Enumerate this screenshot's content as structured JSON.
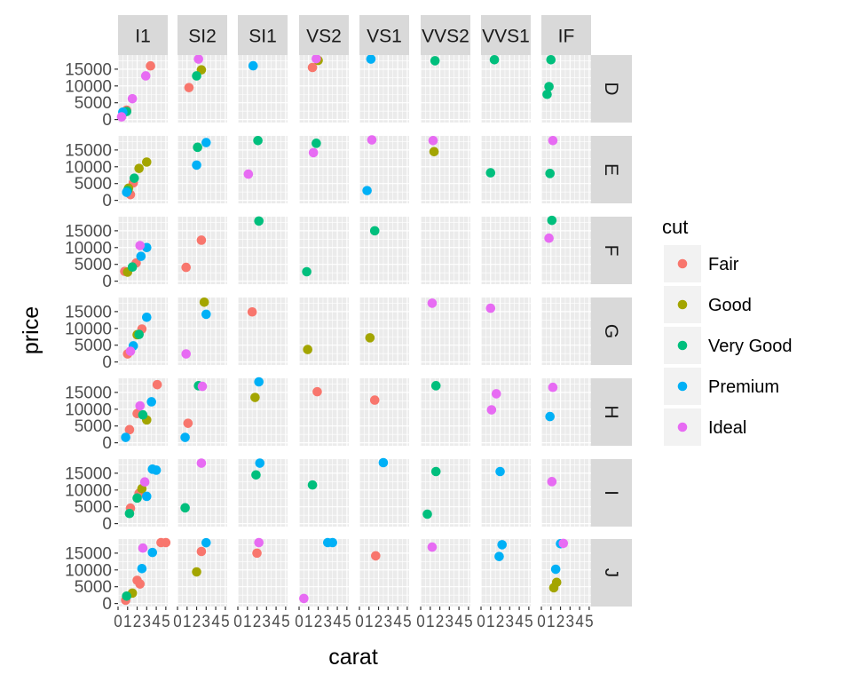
{
  "chart_data": {
    "type": "scatter",
    "title": "",
    "xlabel": "carat",
    "ylabel": "price",
    "xlim": [
      0,
      5.2
    ],
    "ylim": [
      -900,
      19200
    ],
    "x_ticks": [
      "0",
      "1",
      "2",
      "3",
      "4",
      "5"
    ],
    "y_ticks": [
      "0",
      "5000",
      "10000",
      "15000"
    ],
    "column_facets": [
      "I1",
      "SI2",
      "SI1",
      "VS2",
      "VS1",
      "VVS2",
      "VVS1",
      "IF"
    ],
    "row_facets": [
      "D",
      "E",
      "F",
      "G",
      "H",
      "I",
      "J"
    ],
    "legend": {
      "title": "cut",
      "position": "right",
      "entries": [
        "Fair",
        "Good",
        "Very Good",
        "Premium",
        "Ideal"
      ]
    },
    "colors": {
      "Fair": "#F8766D",
      "Good": "#A3A500",
      "Very Good": "#00BF7D",
      "Premium": "#00B0F6",
      "Ideal": "#E76BF3",
      "panel": "#EBEBEB",
      "grid": "#FFFFFF",
      "strip": "#D9D9D9"
    },
    "series": [
      {
        "name": "Fair",
        "points": [
          {
            "col": "I1",
            "row": "D",
            "x": 3.4,
            "y": 15964
          },
          {
            "col": "I1",
            "row": "D",
            "x": 0.9,
            "y": 2800
          },
          {
            "col": "I1",
            "row": "E",
            "x": 1.6,
            "y": 5200
          },
          {
            "col": "I1",
            "row": "E",
            "x": 1.3,
            "y": 1700
          },
          {
            "col": "I1",
            "row": "F",
            "x": 1.9,
            "y": 5400
          },
          {
            "col": "I1",
            "row": "F",
            "x": 0.7,
            "y": 2900
          },
          {
            "col": "I1",
            "row": "G",
            "x": 2.5,
            "y": 9800
          },
          {
            "col": "I1",
            "row": "G",
            "x": 1.0,
            "y": 2400
          },
          {
            "col": "I1",
            "row": "H",
            "x": 4.1,
            "y": 17300
          },
          {
            "col": "I1",
            "row": "H",
            "x": 2.0,
            "y": 8700
          },
          {
            "col": "I1",
            "row": "H",
            "x": 1.2,
            "y": 3900
          },
          {
            "col": "I1",
            "row": "I",
            "x": 2.2,
            "y": 9000
          },
          {
            "col": "I1",
            "row": "I",
            "x": 1.3,
            "y": 4600
          },
          {
            "col": "I1",
            "row": "J",
            "x": 4.5,
            "y": 18531
          },
          {
            "col": "I1",
            "row": "J",
            "x": 5.0,
            "y": 18531
          },
          {
            "col": "I1",
            "row": "J",
            "x": 2.0,
            "y": 6900
          },
          {
            "col": "I1",
            "row": "J",
            "x": 2.3,
            "y": 5800
          },
          {
            "col": "I1",
            "row": "J",
            "x": 0.8,
            "y": 1000
          },
          {
            "col": "SI2",
            "row": "D",
            "x": 1.2,
            "y": 9500
          },
          {
            "col": "SI2",
            "row": "F",
            "x": 2.5,
            "y": 12200
          },
          {
            "col": "SI2",
            "row": "F",
            "x": 0.9,
            "y": 4100
          },
          {
            "col": "SI2",
            "row": "H",
            "x": 1.1,
            "y": 5800
          },
          {
            "col": "SI2",
            "row": "J",
            "x": 2.5,
            "y": 15500
          },
          {
            "col": "SI1",
            "row": "G",
            "x": 1.5,
            "y": 14900
          },
          {
            "col": "SI1",
            "row": "J",
            "x": 2.0,
            "y": 15000
          },
          {
            "col": "VS2",
            "row": "D",
            "x": 1.4,
            "y": 15500
          },
          {
            "col": "VS2",
            "row": "H",
            "x": 1.9,
            "y": 15200
          },
          {
            "col": "VS1",
            "row": "H",
            "x": 1.6,
            "y": 12700
          },
          {
            "col": "VS1",
            "row": "J",
            "x": 1.7,
            "y": 14200
          }
        ]
      },
      {
        "name": "Good",
        "points": [
          {
            "col": "I1",
            "row": "E",
            "x": 3.0,
            "y": 11400
          },
          {
            "col": "I1",
            "row": "E",
            "x": 2.2,
            "y": 9500
          },
          {
            "col": "I1",
            "row": "E",
            "x": 1.1,
            "y": 3600
          },
          {
            "col": "I1",
            "row": "F",
            "x": 1.0,
            "y": 2700
          },
          {
            "col": "I1",
            "row": "G",
            "x": 2.0,
            "y": 8100
          },
          {
            "col": "I1",
            "row": "H",
            "x": 3.0,
            "y": 6800
          },
          {
            "col": "I1",
            "row": "I",
            "x": 2.5,
            "y": 10400
          },
          {
            "col": "I1",
            "row": "J",
            "x": 1.5,
            "y": 3100
          },
          {
            "col": "SI2",
            "row": "D",
            "x": 2.5,
            "y": 14800
          },
          {
            "col": "SI2",
            "row": "G",
            "x": 2.8,
            "y": 17800
          },
          {
            "col": "SI2",
            "row": "J",
            "x": 2.0,
            "y": 9400
          },
          {
            "col": "SI1",
            "row": "H",
            "x": 1.8,
            "y": 13500
          },
          {
            "col": "VS2",
            "row": "D",
            "x": 2.0,
            "y": 17600
          },
          {
            "col": "VS2",
            "row": "G",
            "x": 0.9,
            "y": 3700
          },
          {
            "col": "VS1",
            "row": "G",
            "x": 1.1,
            "y": 7200
          },
          {
            "col": "VVS2",
            "row": "E",
            "x": 1.4,
            "y": 14500
          },
          {
            "col": "IF",
            "row": "J",
            "x": 1.6,
            "y": 6300
          },
          {
            "col": "IF",
            "row": "J",
            "x": 1.3,
            "y": 4700
          }
        ]
      },
      {
        "name": "Very Good",
        "points": [
          {
            "col": "I1",
            "row": "D",
            "x": 0.9,
            "y": 2400
          },
          {
            "col": "I1",
            "row": "E",
            "x": 1.0,
            "y": 2900
          },
          {
            "col": "I1",
            "row": "E",
            "x": 1.7,
            "y": 6600
          },
          {
            "col": "I1",
            "row": "F",
            "x": 1.5,
            "y": 4200
          },
          {
            "col": "I1",
            "row": "G",
            "x": 2.2,
            "y": 8200
          },
          {
            "col": "I1",
            "row": "H",
            "x": 2.6,
            "y": 8300
          },
          {
            "col": "I1",
            "row": "I",
            "x": 1.2,
            "y": 3000
          },
          {
            "col": "I1",
            "row": "I",
            "x": 2.0,
            "y": 7600
          },
          {
            "col": "I1",
            "row": "J",
            "x": 0.9,
            "y": 2200
          },
          {
            "col": "SI2",
            "row": "D",
            "x": 2.0,
            "y": 13000
          },
          {
            "col": "SI2",
            "row": "E",
            "x": 2.1,
            "y": 15800
          },
          {
            "col": "SI2",
            "row": "H",
            "x": 2.2,
            "y": 17000
          },
          {
            "col": "SI2",
            "row": "I",
            "x": 0.8,
            "y": 4700
          },
          {
            "col": "SI1",
            "row": "E",
            "x": 2.1,
            "y": 17800
          },
          {
            "col": "SI1",
            "row": "F",
            "x": 2.2,
            "y": 17900
          },
          {
            "col": "SI1",
            "row": "I",
            "x": 1.9,
            "y": 14500
          },
          {
            "col": "VS2",
            "row": "E",
            "x": 1.8,
            "y": 17000
          },
          {
            "col": "VS2",
            "row": "F",
            "x": 0.8,
            "y": 2800
          },
          {
            "col": "VS2",
            "row": "I",
            "x": 1.4,
            "y": 11500
          },
          {
            "col": "VS1",
            "row": "F",
            "x": 1.6,
            "y": 15000
          },
          {
            "col": "VVS2",
            "row": "D",
            "x": 1.5,
            "y": 17500
          },
          {
            "col": "VVS2",
            "row": "H",
            "x": 1.6,
            "y": 17000
          },
          {
            "col": "VVS2",
            "row": "I",
            "x": 1.6,
            "y": 15500
          },
          {
            "col": "VVS2",
            "row": "I",
            "x": 0.7,
            "y": 2800
          },
          {
            "col": "VVS1",
            "row": "D",
            "x": 1.4,
            "y": 17800
          },
          {
            "col": "VVS1",
            "row": "E",
            "x": 1.0,
            "y": 8200
          },
          {
            "col": "IF",
            "row": "D",
            "x": 1.0,
            "y": 17800
          },
          {
            "col": "IF",
            "row": "D",
            "x": 0.8,
            "y": 9800
          },
          {
            "col": "IF",
            "row": "D",
            "x": 0.6,
            "y": 7500
          },
          {
            "col": "IF",
            "row": "E",
            "x": 0.9,
            "y": 8000
          },
          {
            "col": "IF",
            "row": "F",
            "x": 1.1,
            "y": 18100
          }
        ]
      },
      {
        "name": "Premium",
        "points": [
          {
            "col": "I1",
            "row": "D",
            "x": 0.5,
            "y": 2200
          },
          {
            "col": "I1",
            "row": "E",
            "x": 0.9,
            "y": 2400
          },
          {
            "col": "I1",
            "row": "F",
            "x": 2.4,
            "y": 7400
          },
          {
            "col": "I1",
            "row": "F",
            "x": 3.0,
            "y": 10000
          },
          {
            "col": "I1",
            "row": "G",
            "x": 3.0,
            "y": 13300
          },
          {
            "col": "I1",
            "row": "G",
            "x": 1.6,
            "y": 4800
          },
          {
            "col": "I1",
            "row": "H",
            "x": 3.5,
            "y": 12200
          },
          {
            "col": "I1",
            "row": "H",
            "x": 0.8,
            "y": 1600
          },
          {
            "col": "I1",
            "row": "I",
            "x": 3.6,
            "y": 16200
          },
          {
            "col": "I1",
            "row": "I",
            "x": 4.0,
            "y": 15900
          },
          {
            "col": "I1",
            "row": "I",
            "x": 3.0,
            "y": 8100
          },
          {
            "col": "I1",
            "row": "J",
            "x": 2.5,
            "y": 10400
          },
          {
            "col": "I1",
            "row": "J",
            "x": 3.6,
            "y": 15200
          },
          {
            "col": "SI2",
            "row": "E",
            "x": 3.0,
            "y": 17200
          },
          {
            "col": "SI2",
            "row": "E",
            "x": 2.0,
            "y": 10500
          },
          {
            "col": "SI2",
            "row": "G",
            "x": 3.0,
            "y": 14200
          },
          {
            "col": "SI2",
            "row": "H",
            "x": 0.8,
            "y": 1600
          },
          {
            "col": "SI2",
            "row": "J",
            "x": 3.0,
            "y": 18100
          },
          {
            "col": "SI1",
            "row": "D",
            "x": 1.6,
            "y": 16000
          },
          {
            "col": "SI1",
            "row": "H",
            "x": 2.2,
            "y": 18200
          },
          {
            "col": "SI1",
            "row": "I",
            "x": 2.3,
            "y": 18000
          },
          {
            "col": "VS2",
            "row": "J",
            "x": 3.0,
            "y": 18400
          },
          {
            "col": "VS2",
            "row": "J",
            "x": 3.5,
            "y": 18300
          },
          {
            "col": "VS1",
            "row": "D",
            "x": 1.2,
            "y": 18000
          },
          {
            "col": "VS1",
            "row": "I",
            "x": 2.5,
            "y": 18200
          },
          {
            "col": "VS1",
            "row": "E",
            "x": 0.8,
            "y": 2900
          },
          {
            "col": "VVS1",
            "row": "I",
            "x": 2.0,
            "y": 15500
          },
          {
            "col": "VVS1",
            "row": "J",
            "x": 2.2,
            "y": 17500
          },
          {
            "col": "VVS1",
            "row": "J",
            "x": 1.9,
            "y": 14000
          },
          {
            "col": "IF",
            "row": "H",
            "x": 0.9,
            "y": 7800
          },
          {
            "col": "IF",
            "row": "J",
            "x": 1.5,
            "y": 10200
          },
          {
            "col": "IF",
            "row": "J",
            "x": 2.0,
            "y": 17800
          }
        ]
      },
      {
        "name": "Ideal",
        "points": [
          {
            "col": "I1",
            "row": "D",
            "x": 2.9,
            "y": 13000
          },
          {
            "col": "I1",
            "row": "D",
            "x": 1.5,
            "y": 6200
          },
          {
            "col": "I1",
            "row": "D",
            "x": 0.3,
            "y": 800
          },
          {
            "col": "I1",
            "row": "F",
            "x": 2.3,
            "y": 10600
          },
          {
            "col": "I1",
            "row": "G",
            "x": 1.3,
            "y": 3200
          },
          {
            "col": "I1",
            "row": "H",
            "x": 2.3,
            "y": 11000
          },
          {
            "col": "I1",
            "row": "I",
            "x": 2.8,
            "y": 12400
          },
          {
            "col": "I1",
            "row": "J",
            "x": 2.6,
            "y": 16500
          },
          {
            "col": "SI2",
            "row": "D",
            "x": 2.2,
            "y": 18000
          },
          {
            "col": "SI2",
            "row": "G",
            "x": 0.9,
            "y": 2400
          },
          {
            "col": "SI2",
            "row": "H",
            "x": 2.6,
            "y": 16800
          },
          {
            "col": "SI2",
            "row": "I",
            "x": 2.5,
            "y": 18000
          },
          {
            "col": "SI1",
            "row": "E",
            "x": 1.1,
            "y": 7800
          },
          {
            "col": "SI1",
            "row": "J",
            "x": 2.2,
            "y": 18200
          },
          {
            "col": "VS2",
            "row": "D",
            "x": 1.8,
            "y": 18100
          },
          {
            "col": "VS2",
            "row": "E",
            "x": 1.5,
            "y": 14200
          },
          {
            "col": "VS2",
            "row": "J",
            "x": 0.5,
            "y": 1500
          },
          {
            "col": "VS1",
            "row": "E",
            "x": 1.3,
            "y": 18000
          },
          {
            "col": "VVS2",
            "row": "E",
            "x": 1.3,
            "y": 17800
          },
          {
            "col": "VVS2",
            "row": "G",
            "x": 1.2,
            "y": 17500
          },
          {
            "col": "VVS2",
            "row": "J",
            "x": 1.2,
            "y": 16800
          },
          {
            "col": "VVS1",
            "row": "G",
            "x": 1.0,
            "y": 16000
          },
          {
            "col": "VVS1",
            "row": "H",
            "x": 1.6,
            "y": 14600
          },
          {
            "col": "VVS1",
            "row": "H",
            "x": 1.1,
            "y": 9800
          },
          {
            "col": "IF",
            "row": "E",
            "x": 1.2,
            "y": 17800
          },
          {
            "col": "IF",
            "row": "F",
            "x": 0.8,
            "y": 12800
          },
          {
            "col": "IF",
            "row": "H",
            "x": 1.2,
            "y": 16500
          },
          {
            "col": "IF",
            "row": "I",
            "x": 1.1,
            "y": 12500
          },
          {
            "col": "IF",
            "row": "J",
            "x": 2.3,
            "y": 17900
          }
        ]
      }
    ]
  }
}
